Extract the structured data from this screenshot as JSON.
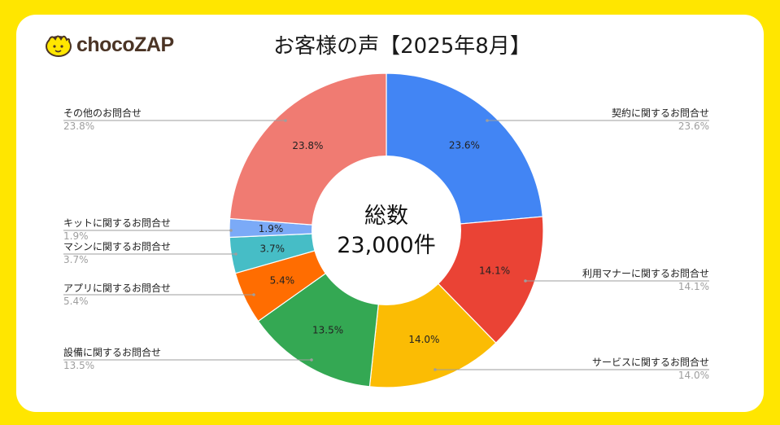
{
  "brand": {
    "name_part1": "choco",
    "name_part2": "ZAP"
  },
  "title": "お客様の声【2025年8月】",
  "center": {
    "label": "総数",
    "total": "23,000件"
  },
  "chart_data": {
    "type": "pie",
    "donut": true,
    "title": "お客様の声【2025年8月】",
    "total_label": "総数",
    "total_value": "23,000件",
    "slices": [
      {
        "name": "契約に関するお問合せ",
        "value": 23.6,
        "label": "23.6%",
        "color": "#4285F4"
      },
      {
        "name": "利用マナーに関するお問合せ",
        "value": 14.1,
        "label": "14.1%",
        "color": "#EA4335"
      },
      {
        "name": "サービスに関するお問合せ",
        "value": 14.0,
        "label": "14.0%",
        "color": "#FBBC04"
      },
      {
        "name": "設備に関するお問合せ",
        "value": 13.5,
        "label": "13.5%",
        "color": "#34A853"
      },
      {
        "name": "アプリに関するお問合せ",
        "value": 5.4,
        "label": "5.4%",
        "color": "#FF6D01"
      },
      {
        "name": "マシンに関するお問合せ",
        "value": 3.7,
        "label": "3.7%",
        "color": "#46BDC6"
      },
      {
        "name": "キットに関するお問合せ",
        "value": 1.9,
        "label": "1.9%",
        "color": "#7BAAF7"
      },
      {
        "name": "その他のお問合せ",
        "value": 23.8,
        "label": "23.8%",
        "color": "#F07B72"
      }
    ]
  },
  "colors": {
    "background": "#FFE600",
    "card": "#FFFFFF",
    "leader_line": "#9E9E9E"
  }
}
